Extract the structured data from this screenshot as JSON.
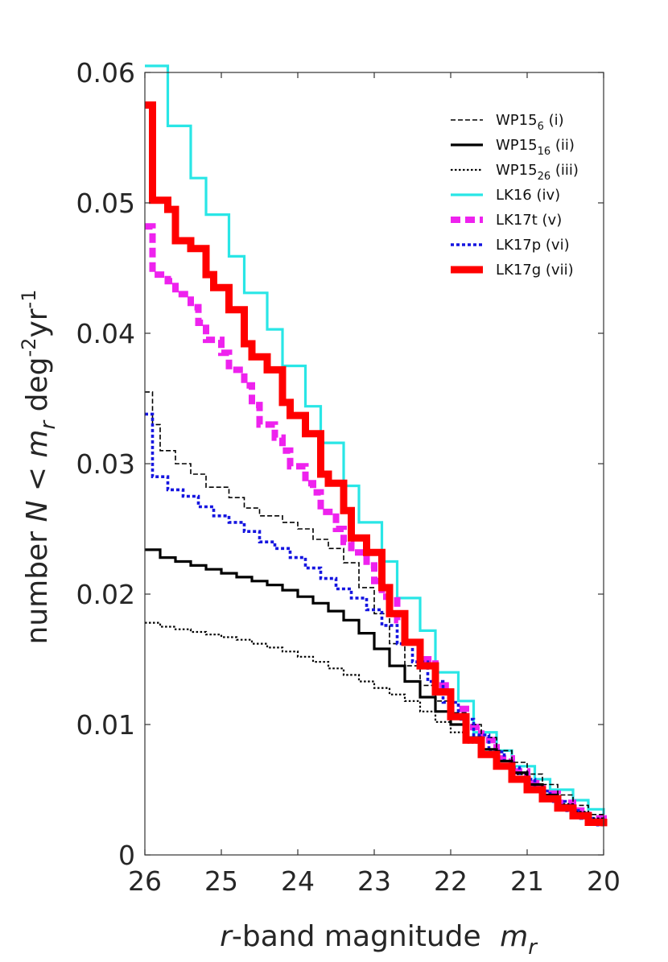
{
  "chart_data": {
    "type": "line",
    "title": "",
    "xlabel": {
      "italic_part": "r",
      "text": "-band magnitude ",
      "symbol": "m",
      "subscript": "r"
    },
    "ylabel": {
      "prefix": "number ",
      "N": "N",
      "lt": " < ",
      "m": "m",
      "m_sub": "r",
      "unit1": " deg",
      "unit1_sup": "-2",
      "unit2": "yr",
      "unit2_sup": "-1"
    },
    "xlim": [
      26,
      20
    ],
    "ylim": [
      0,
      0.06
    ],
    "xticks": [
      26,
      25,
      24,
      23,
      22,
      21,
      20
    ],
    "yticks": [
      0,
      0.01,
      0.02,
      0.03,
      0.04,
      0.05,
      0.06
    ],
    "xtick_labels": [
      "26",
      "25",
      "24",
      "23",
      "22",
      "21",
      "20"
    ],
    "ytick_labels": [
      "0",
      "0.01",
      "0.02",
      "0.03",
      "0.04",
      "0.05",
      "0.06"
    ],
    "legend_position": "top-right",
    "series": [
      {
        "name": "WP15",
        "sub": "6",
        "tag": " (i)",
        "color": "#000000",
        "style": "dashed-thin",
        "x": [
          26,
          25.9,
          25.8,
          25.6,
          25.4,
          25.2,
          24.9,
          24.7,
          24.5,
          24.2,
          24,
          23.8,
          23.6,
          23.4,
          23.2,
          23,
          22.8,
          22.6,
          22.4,
          22.2,
          22,
          21.8,
          21.6,
          21.4,
          21.2,
          21,
          20.8,
          20.6,
          20.4,
          20.2,
          20
        ],
        "y": [
          0.0355,
          0.033,
          0.031,
          0.03,
          0.0292,
          0.0282,
          0.0274,
          0.0266,
          0.026,
          0.0255,
          0.025,
          0.0242,
          0.0235,
          0.0224,
          0.0205,
          0.0185,
          0.0162,
          0.0145,
          0.013,
          0.0118,
          0.0109,
          0.01,
          0.009,
          0.008,
          0.0071,
          0.0062,
          0.0054,
          0.0046,
          0.0038,
          0.0031,
          0.0026
        ]
      },
      {
        "name": "WP15",
        "sub": "16",
        "tag": " (ii)",
        "color": "#000000",
        "style": "solid-medium",
        "x": [
          26,
          25.8,
          25.6,
          25.4,
          25.2,
          25,
          24.8,
          24.6,
          24.4,
          24.2,
          24,
          23.8,
          23.6,
          23.4,
          23.2,
          23,
          22.8,
          22.6,
          22.4,
          22.2,
          22,
          21.8,
          21.6,
          21.4,
          21.2,
          21,
          20.8,
          20.6,
          20.4,
          20.2,
          20
        ],
        "y": [
          0.0234,
          0.0228,
          0.0225,
          0.0222,
          0.0219,
          0.0216,
          0.0213,
          0.021,
          0.0207,
          0.0203,
          0.0198,
          0.0193,
          0.0187,
          0.018,
          0.017,
          0.0158,
          0.0145,
          0.0133,
          0.0121,
          0.011,
          0.01,
          0.009,
          0.0081,
          0.0072,
          0.0063,
          0.0054,
          0.0046,
          0.0038,
          0.0032,
          0.0027,
          0.0024
        ]
      },
      {
        "name": "WP15",
        "sub": "26",
        "tag": " (iii)",
        "color": "#000000",
        "style": "dotted",
        "x": [
          26,
          25.8,
          25.6,
          25.4,
          25.2,
          25,
          24.8,
          24.6,
          24.4,
          24.2,
          24,
          23.8,
          23.6,
          23.4,
          23.2,
          23,
          22.8,
          22.6,
          22.4,
          22.2,
          22,
          21.8,
          21.6,
          21.4,
          21.2,
          21,
          20.8,
          20.6,
          20.4,
          20.2,
          20
        ],
        "y": [
          0.0178,
          0.0175,
          0.0173,
          0.0171,
          0.0169,
          0.0167,
          0.0165,
          0.0162,
          0.0159,
          0.0156,
          0.0152,
          0.0148,
          0.0143,
          0.0138,
          0.0133,
          0.0128,
          0.0123,
          0.0118,
          0.011,
          0.0102,
          0.0094,
          0.0086,
          0.0078,
          0.007,
          0.0062,
          0.0054,
          0.0046,
          0.0039,
          0.0033,
          0.0028,
          0.0024
        ]
      },
      {
        "name": "LK16",
        "sub": "",
        "tag": " (iv)",
        "color": "#29e6e6",
        "style": "solid-medium",
        "x": [
          26,
          25.7,
          25.4,
          25.2,
          24.9,
          24.7,
          24.4,
          24.2,
          23.9,
          23.7,
          23.4,
          23.2,
          22.9,
          22.7,
          22.4,
          22.2,
          21.9,
          21.7,
          21.4,
          21.2,
          20.9,
          20.7,
          20.4,
          20.2,
          20
        ],
        "y": [
          0.0605,
          0.0559,
          0.0519,
          0.0491,
          0.0459,
          0.0431,
          0.0403,
          0.0375,
          0.0344,
          0.0316,
          0.0283,
          0.0255,
          0.0225,
          0.0197,
          0.0172,
          0.014,
          0.0118,
          0.0094,
          0.008,
          0.0068,
          0.0058,
          0.005,
          0.0042,
          0.0035,
          0.0031
        ]
      },
      {
        "name": "LK17t",
        "sub": "",
        "tag": " (v)",
        "color": "#ee22ee",
        "style": "dashed-thick",
        "x": [
          26,
          25.9,
          25.7,
          25.6,
          25.4,
          25.3,
          25.2,
          25.0,
          24.9,
          24.7,
          24.6,
          24.5,
          24.3,
          24.2,
          24.1,
          23.9,
          23.8,
          23.7,
          23.5,
          23.4,
          23.3,
          23.1,
          23.0,
          22.9,
          22.7,
          22.6,
          22.4,
          22.2,
          22.0,
          21.8,
          21.6,
          21.4,
          21.2,
          21.0,
          20.8,
          20.6,
          20.4,
          20.2,
          20
        ],
        "y": [
          0.0482,
          0.0445,
          0.044,
          0.043,
          0.042,
          0.0408,
          0.0395,
          0.0385,
          0.0372,
          0.036,
          0.0345,
          0.033,
          0.032,
          0.031,
          0.0298,
          0.0285,
          0.0278,
          0.0263,
          0.025,
          0.024,
          0.0232,
          0.0222,
          0.021,
          0.0198,
          0.018,
          0.0163,
          0.015,
          0.013,
          0.0112,
          0.0098,
          0.0088,
          0.0074,
          0.0064,
          0.0055,
          0.0047,
          0.004,
          0.0034,
          0.0028,
          0.0024
        ]
      },
      {
        "name": "LK17p",
        "sub": "",
        "tag": " (vi)",
        "color": "#1515e0",
        "style": "dotted-thick",
        "x": [
          26,
          25.9,
          25.7,
          25.5,
          25.3,
          25.1,
          24.9,
          24.7,
          24.5,
          24.3,
          24.1,
          23.9,
          23.7,
          23.5,
          23.3,
          23.1,
          22.9,
          22.7,
          22.5,
          22.3,
          22.1,
          21.9,
          21.7,
          21.5,
          21.3,
          21.1,
          20.9,
          20.7,
          20.5,
          20.3,
          20.1
        ],
        "y": [
          0.0338,
          0.029,
          0.028,
          0.0275,
          0.0267,
          0.026,
          0.0255,
          0.0248,
          0.024,
          0.0235,
          0.0228,
          0.022,
          0.0212,
          0.0204,
          0.0197,
          0.0188,
          0.0176,
          0.0162,
          0.0148,
          0.0133,
          0.0117,
          0.0104,
          0.0092,
          0.0079,
          0.0067,
          0.0058,
          0.0049,
          0.0041,
          0.0034,
          0.0028,
          0.0023
        ]
      },
      {
        "name": "LK17g",
        "sub": "",
        "tag": " (vii)",
        "color": "#ff0000",
        "style": "solid-thick",
        "x": [
          26,
          25.9,
          25.7,
          25.6,
          25.4,
          25.2,
          25.1,
          24.9,
          24.7,
          24.6,
          24.4,
          24.2,
          24.1,
          23.9,
          23.7,
          23.6,
          23.4,
          23.3,
          23.1,
          22.9,
          22.8,
          22.6,
          22.4,
          22.2,
          22.0,
          21.8,
          21.6,
          21.4,
          21.2,
          21.0,
          20.8,
          20.6,
          20.4,
          20.2,
          20
        ],
        "y": [
          0.0575,
          0.0502,
          0.0495,
          0.0471,
          0.0465,
          0.0445,
          0.0435,
          0.0418,
          0.0392,
          0.0382,
          0.0372,
          0.0347,
          0.0337,
          0.0323,
          0.0292,
          0.0285,
          0.0264,
          0.0243,
          0.0232,
          0.0205,
          0.0185,
          0.0163,
          0.0145,
          0.0125,
          0.0106,
          0.0088,
          0.0077,
          0.0068,
          0.0058,
          0.005,
          0.0043,
          0.0036,
          0.003,
          0.0025,
          0.0022
        ]
      }
    ]
  }
}
